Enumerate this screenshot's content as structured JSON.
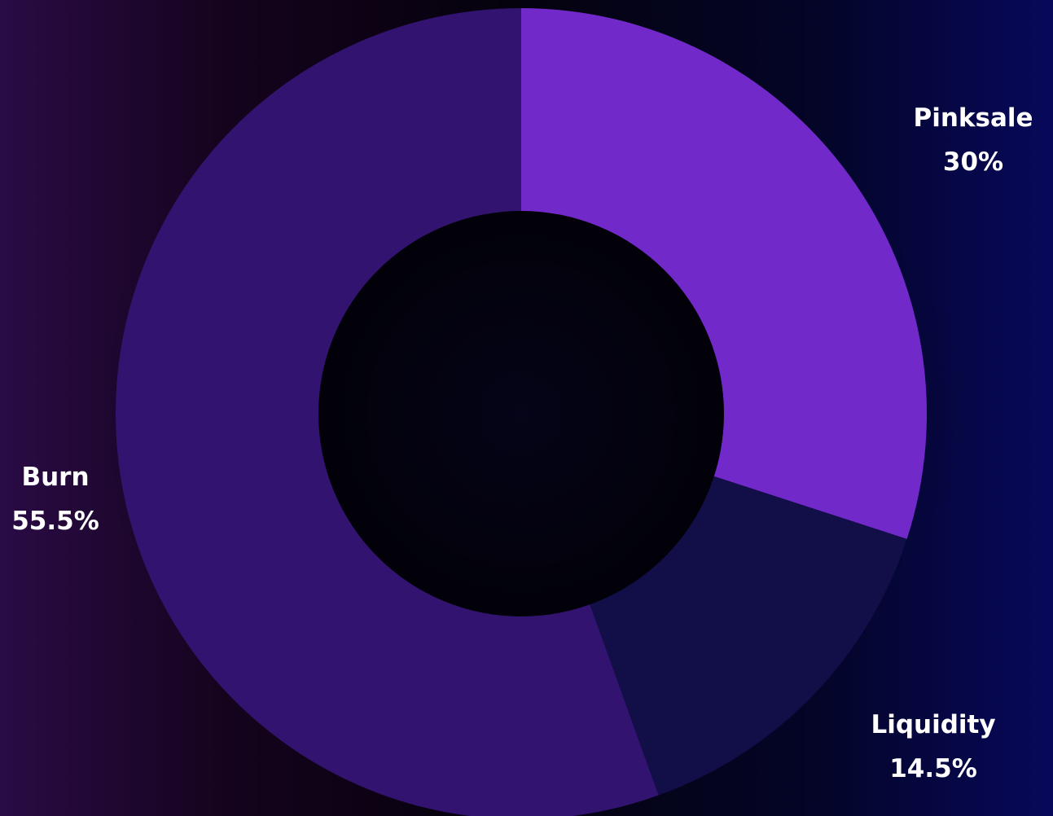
{
  "chart_data": {
    "type": "pie",
    "variant": "donut",
    "title": "",
    "slices": [
      {
        "label": "Pinksale",
        "value": 30,
        "value_label": "30%",
        "color": "#7229c9"
      },
      {
        "label": "Liquidity",
        "value": 14.5,
        "value_label": "14.5%",
        "color": "#110e48"
      },
      {
        "label": "Burn",
        "value": 55.5,
        "value_label": "55.5%",
        "color": "#32136f"
      }
    ],
    "start_angle_deg": 0,
    "direction": "clockwise",
    "hole_color": "#03020e",
    "label_color": "#ffffff"
  }
}
